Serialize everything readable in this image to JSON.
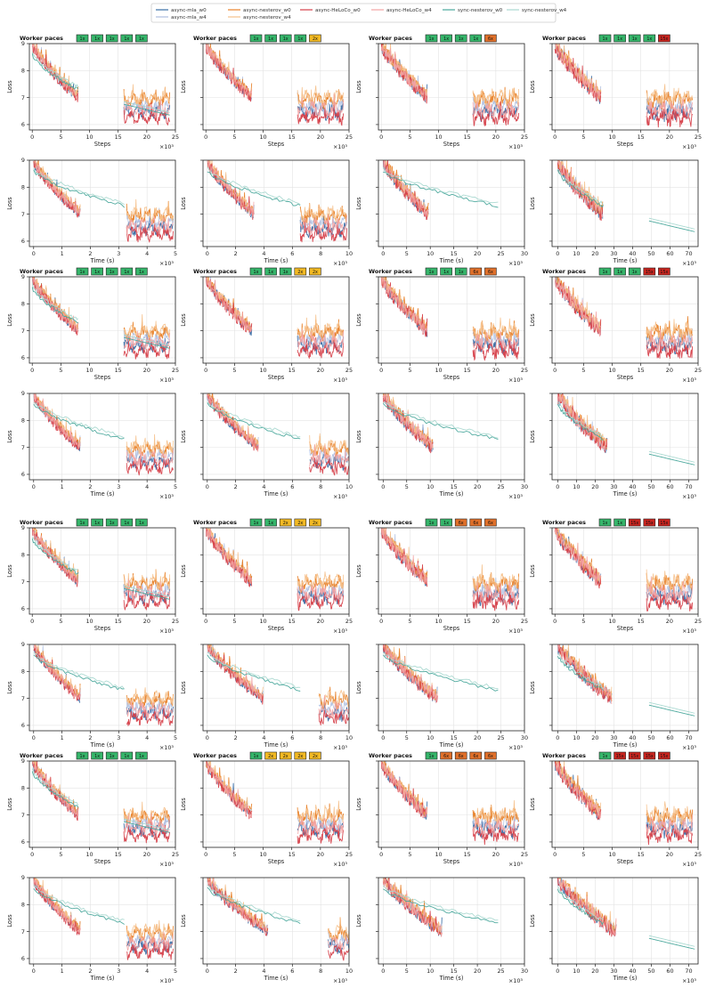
{
  "legend": {
    "entries": [
      {
        "label": "async-mla_w0",
        "color": "#3a6ea5"
      },
      {
        "label": "async-mla_w4",
        "color": "#aebfe0"
      },
      {
        "label": "async-nesterov_w0",
        "color": "#e8822a"
      },
      {
        "label": "async-nesterov_w4",
        "color": "#f5c08a"
      },
      {
        "label": "async-HeLoCo_w0",
        "color": "#d6404a"
      },
      {
        "label": "async-HeLoCo_w4",
        "color": "#f2a3a3"
      },
      {
        "label": "sync-nesterov_w0",
        "color": "#4aa89c"
      },
      {
        "label": "sync-nesterov_w4",
        "color": "#a9d8d0"
      }
    ]
  },
  "pace_colors": {
    "1x": "#35b56a",
    "2x": "#f2b923",
    "6x": "#e0702a",
    "15x": "#c9251f"
  },
  "worker_paces_label": "Worker paces",
  "axis_text": {
    "loss": "Loss",
    "steps": "Steps",
    "time": "Time (s)",
    "scale": "×10³"
  },
  "chart_data": {
    "type": "line",
    "description_of_grid": "8 rows x 4 columns; odd rows loss vs steps, even rows loss vs time",
    "ylim": [
      5.8,
      9
    ],
    "yticks": [
      6,
      7,
      8,
      9
    ],
    "steps_axis": {
      "xlim": [
        -0.5,
        25
      ],
      "xticks": [
        0,
        5,
        10,
        15,
        20,
        25
      ]
    },
    "time_axes": [
      {
        "xlim": [
          -0.15,
          5
        ],
        "xticks": [
          0,
          1,
          2,
          3,
          4,
          5
        ]
      },
      {
        "xlim": [
          -0.3,
          10
        ],
        "xticks": [
          0,
          2,
          4,
          6,
          8,
          10
        ]
      },
      {
        "xlim": [
          -1,
          30
        ],
        "xticks": [
          0,
          5,
          10,
          15,
          20,
          25,
          30
        ]
      },
      {
        "xlim": [
          -3,
          75
        ],
        "xticks": [
          0,
          10,
          20,
          30,
          40,
          50,
          60,
          70
        ]
      }
    ],
    "groups": [
      {
        "paces": [
          [
            "1x",
            "1x",
            "1x",
            "1x",
            "1x"
          ],
          [
            "1x",
            "1x",
            "1x",
            "1x",
            "2x"
          ],
          [
            "1x",
            "1x",
            "1x",
            "1x",
            "6x"
          ],
          [
            "1x",
            "1x",
            "1x",
            "1x",
            "15x"
          ]
        ]
      },
      {
        "paces": [
          [
            "1x",
            "1x",
            "1x",
            "1x",
            "1x"
          ],
          [
            "1x",
            "1x",
            "1x",
            "2x",
            "2x"
          ],
          [
            "1x",
            "1x",
            "1x",
            "6x",
            "6x"
          ],
          [
            "1x",
            "1x",
            "1x",
            "15x",
            "15x"
          ]
        ]
      },
      {
        "paces": [
          [
            "1x",
            "1x",
            "1x",
            "1x",
            "1x"
          ],
          [
            "1x",
            "1x",
            "2x",
            "2x",
            "2x"
          ],
          [
            "1x",
            "1x",
            "6x",
            "6x",
            "6x"
          ],
          [
            "1x",
            "1x",
            "15x",
            "15x",
            "15x"
          ]
        ]
      },
      {
        "paces": [
          [
            "1x",
            "1x",
            "1x",
            "1x",
            "1x"
          ],
          [
            "1x",
            "2x",
            "2x",
            "2x",
            "2x"
          ],
          [
            "1x",
            "6x",
            "6x",
            "6x",
            "6x"
          ],
          [
            "1x",
            "15x",
            "15x",
            "15x",
            "15x"
          ]
        ]
      }
    ],
    "series_shape": {
      "segments_steps": [
        [
          0,
          8
        ],
        [
          16,
          24
        ]
      ],
      "start_loss": 8.9,
      "end_loss_first_segment": 7.0,
      "second_segment_level": {
        "mla": 6.4,
        "nesterov": 6.8,
        "HeLoCo": 6.3,
        "sync": 6.5
      }
    }
  }
}
